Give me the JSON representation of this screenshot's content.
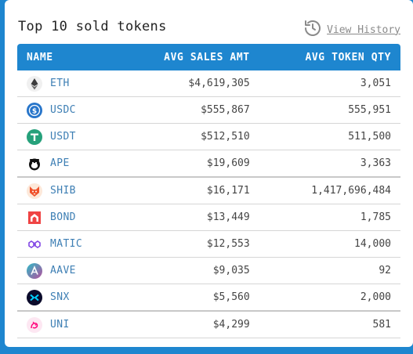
{
  "title": "Top 10 sold tokens",
  "history_link": "View History",
  "table": {
    "headers": [
      "NAME",
      "AVG SALES AMT",
      "AVG TOKEN QTY"
    ],
    "rows": [
      {
        "symbol": "ETH",
        "icon": "eth-icon",
        "avg_sales": "$4,619,305",
        "avg_qty": "3,051"
      },
      {
        "symbol": "USDC",
        "icon": "usdc-icon",
        "avg_sales": "$555,867",
        "avg_qty": "555,951"
      },
      {
        "symbol": "USDT",
        "icon": "usdt-icon",
        "avg_sales": "$512,510",
        "avg_qty": "511,500"
      },
      {
        "symbol": "APE",
        "icon": "ape-icon",
        "avg_sales": "$19,609",
        "avg_qty": "3,363"
      },
      {
        "symbol": "SHIB",
        "icon": "shib-icon",
        "avg_sales": "$16,171",
        "avg_qty": "1,417,696,484"
      },
      {
        "symbol": "BOND",
        "icon": "bond-icon",
        "avg_sales": "$13,449",
        "avg_qty": "1,785"
      },
      {
        "symbol": "MATIC",
        "icon": "matic-icon",
        "avg_sales": "$12,553",
        "avg_qty": "14,000"
      },
      {
        "symbol": "AAVE",
        "icon": "aave-icon",
        "avg_sales": "$9,035",
        "avg_qty": "92"
      },
      {
        "symbol": "SNX",
        "icon": "snx-icon",
        "avg_sales": "$5,560",
        "avg_qty": "2,000"
      },
      {
        "symbol": "UNI",
        "icon": "uni-icon",
        "avg_sales": "$4,299",
        "avg_qty": "581"
      }
    ]
  },
  "colors": {
    "accent": "#1e86cf",
    "symbol_text": "#3e7fb4",
    "history_text": "#8a8a8a"
  }
}
